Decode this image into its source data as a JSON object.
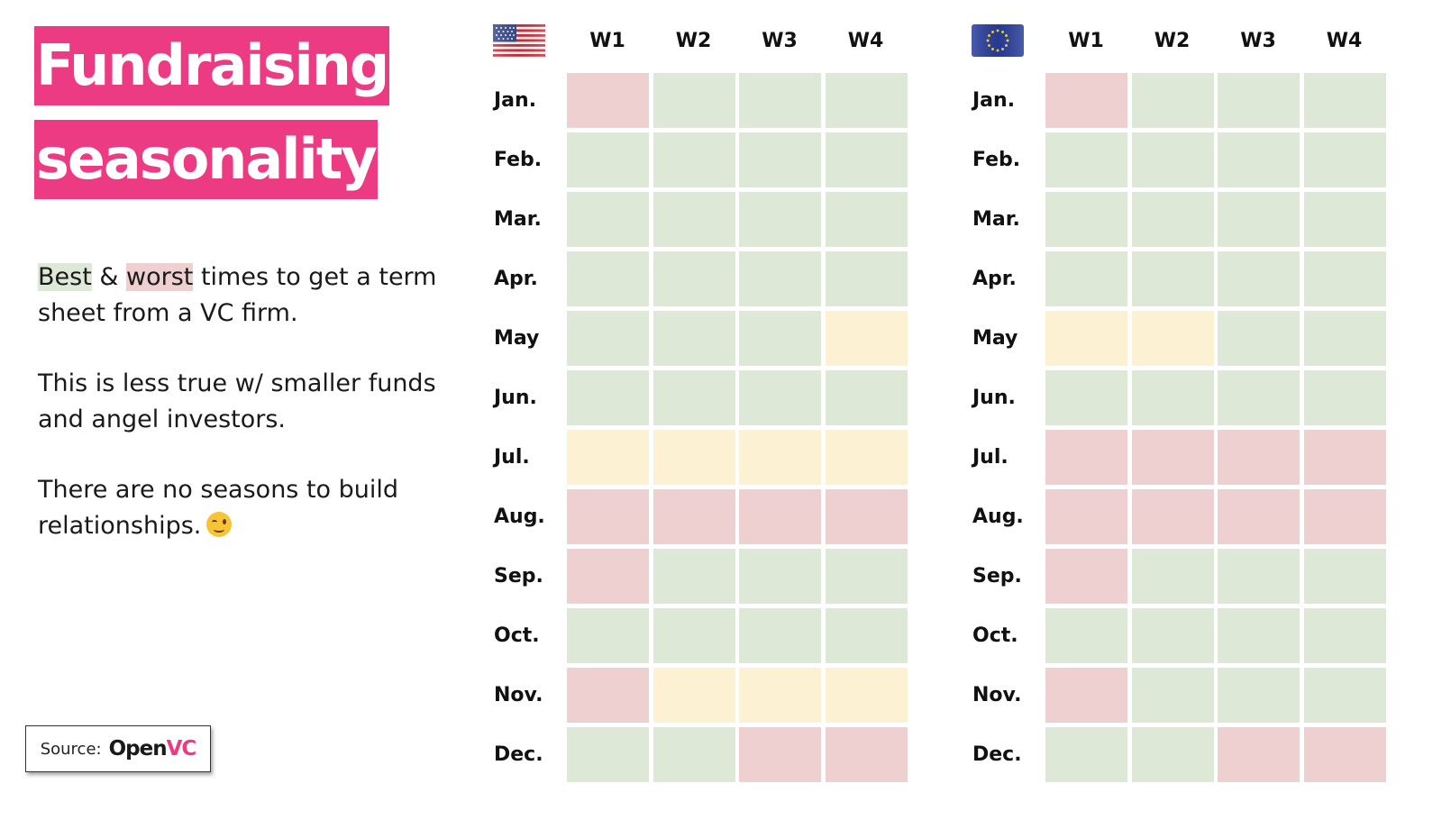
{
  "title": {
    "line1": "Fundraising",
    "line2": "seasonality"
  },
  "description": {
    "para1": {
      "best": "Best",
      "amp": " & ",
      "worst": "worst",
      "rest": " times to get a term sheet from a VC firm."
    },
    "para2": "This is less true w/ smaller funds and angel investors.",
    "para3": "There are no seasons to build relationships."
  },
  "icons": {
    "us_flag": "us-flag-icon",
    "eu_flag": "eu-flag-icon",
    "wink": "winking-face-emoji"
  },
  "source": {
    "label": "Source:",
    "brand_open": "Open",
    "brand_vc": "VC"
  },
  "colors": {
    "accent": "#ec3b83",
    "good": "#dde8d6",
    "medium": "#fcf1d2",
    "bad": "#efd0d0"
  },
  "chart_data": {
    "type": "heatmap",
    "legend": {
      "good": "Best",
      "bad": "worst"
    },
    "categories": [
      "Jan.",
      "Feb.",
      "Mar.",
      "Apr.",
      "May",
      "Jun.",
      "Jul.",
      "Aug.",
      "Sep.",
      "Oct.",
      "Nov.",
      "Dec."
    ],
    "columns": [
      "W1",
      "W2",
      "W3",
      "W4"
    ],
    "grids": [
      {
        "region": "US",
        "values": [
          [
            "bad",
            "good",
            "good",
            "good"
          ],
          [
            "good",
            "good",
            "good",
            "good"
          ],
          [
            "good",
            "good",
            "good",
            "good"
          ],
          [
            "good",
            "good",
            "good",
            "good"
          ],
          [
            "good",
            "good",
            "good",
            "medium"
          ],
          [
            "good",
            "good",
            "good",
            "good"
          ],
          [
            "medium",
            "medium",
            "medium",
            "medium"
          ],
          [
            "bad",
            "bad",
            "bad",
            "bad"
          ],
          [
            "bad",
            "good",
            "good",
            "good"
          ],
          [
            "good",
            "good",
            "good",
            "good"
          ],
          [
            "bad",
            "medium",
            "medium",
            "medium"
          ],
          [
            "good",
            "good",
            "bad",
            "bad"
          ]
        ]
      },
      {
        "region": "EU",
        "values": [
          [
            "bad",
            "good",
            "good",
            "good"
          ],
          [
            "good",
            "good",
            "good",
            "good"
          ],
          [
            "good",
            "good",
            "good",
            "good"
          ],
          [
            "good",
            "good",
            "good",
            "good"
          ],
          [
            "medium",
            "medium",
            "good",
            "good"
          ],
          [
            "good",
            "good",
            "good",
            "good"
          ],
          [
            "bad",
            "bad",
            "bad",
            "bad"
          ],
          [
            "bad",
            "bad",
            "bad",
            "bad"
          ],
          [
            "bad",
            "good",
            "good",
            "good"
          ],
          [
            "good",
            "good",
            "good",
            "good"
          ],
          [
            "bad",
            "good",
            "good",
            "good"
          ],
          [
            "good",
            "good",
            "bad",
            "bad"
          ]
        ]
      }
    ]
  }
}
